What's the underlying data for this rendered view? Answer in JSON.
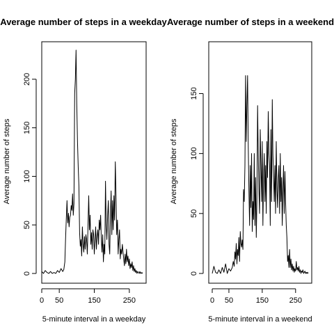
{
  "chart_data": [
    {
      "type": "line",
      "title": "Average number of steps in a weekday",
      "xlabel": "5-minute interval in a weekday",
      "ylabel": "Average number of steps",
      "xlim": [
        0,
        288
      ],
      "ylim": [
        0,
        230
      ],
      "x_ticks": [
        0,
        50,
        150,
        250
      ],
      "y_ticks": [
        0,
        50,
        100,
        150,
        200
      ],
      "x_tick_labels": [
        "0",
        "50",
        "150",
        "250"
      ],
      "y_tick_labels": [
        "0",
        "50",
        "100",
        "150",
        "200"
      ],
      "line_color": "#000000",
      "x": [
        0,
        5,
        10,
        15,
        20,
        25,
        30,
        35,
        40,
        45,
        50,
        55,
        60,
        63,
        66,
        68,
        70,
        72,
        74,
        76,
        78,
        80,
        82,
        84,
        86,
        88,
        90,
        92,
        94,
        96,
        98,
        100,
        102,
        104,
        106,
        108,
        110,
        112,
        114,
        116,
        118,
        120,
        122,
        124,
        126,
        128,
        130,
        132,
        134,
        136,
        138,
        140,
        142,
        144,
        146,
        148,
        150,
        152,
        154,
        156,
        158,
        160,
        162,
        164,
        166,
        168,
        170,
        172,
        174,
        176,
        178,
        180,
        182,
        184,
        186,
        188,
        190,
        192,
        194,
        196,
        198,
        200,
        202,
        204,
        206,
        208,
        210,
        212,
        214,
        216,
        218,
        220,
        222,
        224,
        226,
        228,
        230,
        232,
        234,
        236,
        238,
        240,
        242,
        244,
        246,
        248,
        250,
        252,
        254,
        256,
        258,
        260,
        262,
        264,
        266,
        268,
        270,
        272,
        274,
        276,
        278,
        280,
        282,
        284,
        286,
        288
      ],
      "y": [
        2,
        0,
        3,
        1,
        0,
        2,
        0,
        1,
        0,
        3,
        1,
        5,
        2,
        4,
        12,
        35,
        55,
        75,
        52,
        62,
        48,
        58,
        60,
        70,
        65,
        82,
        60,
        72,
        185,
        200,
        230,
        175,
        135,
        110,
        90,
        42,
        28,
        35,
        18,
        48,
        30,
        22,
        38,
        25,
        40,
        35,
        20,
        50,
        80,
        45,
        60,
        30,
        42,
        25,
        45,
        40,
        20,
        35,
        48,
        25,
        38,
        45,
        30,
        55,
        45,
        60,
        35,
        22,
        40,
        12,
        30,
        20,
        95,
        50,
        35,
        60,
        75,
        30,
        20,
        60,
        85,
        40,
        75,
        45,
        80,
        55,
        115,
        80,
        40,
        55,
        20,
        35,
        45,
        15,
        25,
        20,
        30,
        22,
        15,
        8,
        20,
        10,
        25,
        12,
        18,
        8,
        15,
        5,
        10,
        6,
        12,
        3,
        8,
        2,
        5,
        1,
        3,
        0,
        2,
        1,
        0,
        2,
        0,
        1,
        0,
        1
      ]
    },
    {
      "type": "line",
      "title": "Average number of steps in a weekend",
      "xlabel": "5-minute interval in a weekend",
      "ylabel": "Average number of steps",
      "xlim": [
        0,
        288
      ],
      "ylim": [
        0,
        170
      ],
      "x_ticks": [
        0,
        50,
        150,
        250
      ],
      "y_ticks": [
        0,
        50,
        100,
        150
      ],
      "x_tick_labels": [
        "0",
        "50",
        "150",
        "250"
      ],
      "y_tick_labels": [
        "0",
        "50",
        "100",
        "150"
      ],
      "line_color": "#000000",
      "x": [
        0,
        5,
        10,
        15,
        20,
        25,
        30,
        35,
        40,
        45,
        50,
        55,
        60,
        63,
        66,
        68,
        70,
        72,
        74,
        76,
        78,
        80,
        82,
        84,
        86,
        88,
        90,
        92,
        94,
        96,
        98,
        100,
        102,
        104,
        106,
        108,
        110,
        112,
        114,
        116,
        118,
        120,
        122,
        124,
        126,
        128,
        130,
        132,
        134,
        136,
        138,
        140,
        142,
        144,
        146,
        148,
        150,
        152,
        154,
        156,
        158,
        160,
        162,
        164,
        166,
        168,
        170,
        172,
        174,
        176,
        178,
        180,
        182,
        184,
        186,
        188,
        190,
        192,
        194,
        196,
        198,
        200,
        202,
        204,
        206,
        208,
        210,
        212,
        214,
        216,
        218,
        220,
        222,
        224,
        226,
        228,
        230,
        232,
        234,
        236,
        238,
        240,
        242,
        244,
        246,
        248,
        250,
        252,
        254,
        256,
        258,
        260,
        262,
        264,
        266,
        268,
        270,
        272,
        274,
        276,
        278,
        280,
        282,
        284,
        286,
        288
      ],
      "y": [
        0,
        6,
        1,
        0,
        3,
        0,
        5,
        1,
        8,
        0,
        4,
        2,
        5,
        10,
        6,
        18,
        12,
        25,
        8,
        20,
        15,
        30,
        10,
        35,
        25,
        22,
        28,
        20,
        70,
        60,
        90,
        165,
        110,
        140,
        165,
        105,
        70,
        40,
        90,
        55,
        100,
        35,
        60,
        45,
        100,
        40,
        80,
        30,
        60,
        140,
        100,
        70,
        50,
        120,
        90,
        60,
        110,
        40,
        80,
        100,
        60,
        90,
        50,
        110,
        80,
        135,
        100,
        90,
        40,
        120,
        60,
        145,
        100,
        80,
        60,
        90,
        50,
        110,
        70,
        55,
        80,
        90,
        50,
        100,
        60,
        80,
        40,
        70,
        90,
        50,
        85,
        60,
        40,
        30,
        10,
        15,
        5,
        20,
        5,
        12,
        3,
        8,
        2,
        6,
        1,
        4,
        2,
        10,
        3,
        5,
        2,
        6,
        1,
        3,
        0,
        2,
        1,
        3,
        0,
        1,
        2,
        0,
        1,
        0,
        1,
        0
      ]
    }
  ]
}
